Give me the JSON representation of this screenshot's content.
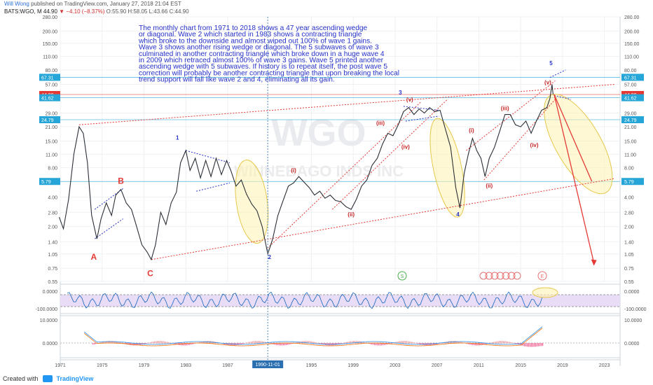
{
  "header": {
    "user": "Will Wong",
    "published": "published on TradingView.com, January 27, 2018 21:04 EST",
    "symbol": "BATS:WGO, M",
    "last": "44.90",
    "change": "▼ −4.10 (−8.37%)",
    "ohlc": "O:55.90 H:58.05 L:43.66 C:44.90"
  },
  "watermark": {
    "ticker": "WGO",
    "name": "WINNEBAGO INDS INC"
  },
  "annotation": [
    "The monthly chart from 1971 to 2018 shows a 47 year ascending wedge",
    "or diagonal. Wave 2 which started in 1983 shows a contracting triangle",
    "which broke to the downside and almost wiped out 100% of wave 1 gains.",
    "Wave 3 shows another rising wedge or diagonal. The 5 subwaves of wave 3",
    "culminated in another contracting triangle which broke down in a huge wave 4",
    "in 2009 which retraced almost 100% of wave 3 gains. Wave 5 printed another",
    "ascending wedge with 5 subwaves. If history is to repeat itself, the post wave 5",
    "correction will probably be another contracting triangle that upon breaking the local",
    "trend support will fall like wave 2 and 4, eliminating all its gain."
  ],
  "wave_labels": {
    "A": "A",
    "B": "B",
    "C": "C",
    "w1": "1",
    "w2": "2",
    "w3": "3",
    "w4": "4",
    "w5": "5",
    "i": "(i)",
    "ii": "(ii)",
    "iii": "(iii)",
    "iv": "(iv)",
    "v": "(v)",
    "i2": "(i)",
    "ii2": "(ii)",
    "iii2": "(iii)",
    "iv2": "(iv)",
    "v2": "(v)"
  },
  "chart_data": {
    "type": "line",
    "price_axis_scale": "log",
    "y_ticks": [
      "280.00",
      "200.00",
      "150.00",
      "110.00",
      "80.00",
      "57.00",
      "41.62",
      "29.00",
      "21.00",
      "15.00",
      "11.00",
      "8.00",
      "5.79",
      "4.00",
      "2.80",
      "2.00",
      "1.40",
      "1.05",
      "0.75",
      "0.55"
    ],
    "y_tick_values": [
      280,
      200,
      150,
      110,
      80,
      57,
      41.62,
      29,
      21,
      15,
      11,
      8,
      5.79,
      4,
      2.8,
      2,
      1.4,
      1.05,
      0.75,
      0.55
    ],
    "x_ticks": [
      "1971",
      "1975",
      "1979",
      "1983",
      "1987",
      "1990-11-01",
      "1995",
      "1999",
      "2003",
      "2007",
      "2011",
      "2015",
      "2019",
      "2023"
    ],
    "x_tick_years": [
      1971,
      1975,
      1979,
      1983,
      1987,
      1990.83,
      1995,
      1999,
      2003,
      2007,
      2011,
      2015,
      2019,
      2023
    ],
    "price_labels": [
      {
        "text": "67.31",
        "value": 67.31,
        "color": "#26a6d8"
      },
      {
        "text": "44.90",
        "value": 44.9,
        "color": "#e53935"
      },
      {
        "text": "41.62",
        "value": 41.62,
        "color": "#26a6d8"
      },
      {
        "text": "24.79",
        "value": 24.79,
        "color": "#26a6d8"
      },
      {
        "text": "5.79",
        "value": 5.79,
        "color": "#26a6d8"
      }
    ],
    "price_series": [
      [
        1970.9,
        2.5
      ],
      [
        1971.3,
        1.9
      ],
      [
        1971.8,
        3.8
      ],
      [
        1972.3,
        11
      ],
      [
        1972.8,
        21
      ],
      [
        1973.2,
        18
      ],
      [
        1973.6,
        9
      ],
      [
        1974.0,
        2.6
      ],
      [
        1974.5,
        1.5
      ],
      [
        1974.9,
        2.4
      ],
      [
        1975.4,
        3.5
      ],
      [
        1975.9,
        2.6
      ],
      [
        1976.3,
        4.2
      ],
      [
        1976.8,
        4.8
      ],
      [
        1977.3,
        3.5
      ],
      [
        1977.8,
        3.0
      ],
      [
        1978.3,
        2.0
      ],
      [
        1978.8,
        1.3
      ],
      [
        1979.3,
        1.1
      ],
      [
        1979.7,
        0.92
      ],
      [
        1980.1,
        1.3
      ],
      [
        1980.6,
        2.8
      ],
      [
        1981.1,
        2.1
      ],
      [
        1981.6,
        3.5
      ],
      [
        1982.1,
        4.5
      ],
      [
        1982.5,
        9
      ],
      [
        1983.0,
        12
      ],
      [
        1983.4,
        7.5
      ],
      [
        1983.9,
        10
      ],
      [
        1984.4,
        6.3
      ],
      [
        1984.9,
        9.5
      ],
      [
        1985.4,
        6.5
      ],
      [
        1985.9,
        10
      ],
      [
        1986.4,
        6.8
      ],
      [
        1986.9,
        9.5
      ],
      [
        1987.3,
        7.5
      ],
      [
        1987.8,
        5.2
      ],
      [
        1988.3,
        6.0
      ],
      [
        1988.8,
        4.3
      ],
      [
        1989.3,
        3.4
      ],
      [
        1989.8,
        2.9
      ],
      [
        1990.3,
        2.0
      ],
      [
        1990.83,
        1.05
      ],
      [
        1991.3,
        1.5
      ],
      [
        1991.8,
        2.6
      ],
      [
        1992.3,
        3.7
      ],
      [
        1992.8,
        5.2
      ],
      [
        1993.3,
        5.6
      ],
      [
        1993.8,
        6.5
      ],
      [
        1994.3,
        5.7
      ],
      [
        1994.8,
        5.0
      ],
      [
        1995.3,
        4.2
      ],
      [
        1995.8,
        4.6
      ],
      [
        1996.3,
        3.9
      ],
      [
        1996.8,
        4.2
      ],
      [
        1997.3,
        3.7
      ],
      [
        1997.8,
        3.6
      ],
      [
        1998.3,
        3.2
      ],
      [
        1998.8,
        3.0
      ],
      [
        1999.3,
        3.8
      ],
      [
        1999.8,
        5.2
      ],
      [
        2000.3,
        6.0
      ],
      [
        2000.8,
        8.5
      ],
      [
        2001.3,
        10
      ],
      [
        2001.8,
        14
      ],
      [
        2002.3,
        18
      ],
      [
        2002.8,
        17
      ],
      [
        2003.3,
        22
      ],
      [
        2003.8,
        30
      ],
      [
        2004.3,
        33
      ],
      [
        2004.8,
        28
      ],
      [
        2005.3,
        32
      ],
      [
        2005.8,
        29
      ],
      [
        2006.3,
        33
      ],
      [
        2006.8,
        30
      ],
      [
        2007.3,
        31
      ],
      [
        2007.8,
        20
      ],
      [
        2008.3,
        13
      ],
      [
        2008.8,
        5
      ],
      [
        2009.2,
        3.1
      ],
      [
        2009.6,
        7
      ],
      [
        2010.0,
        11
      ],
      [
        2010.4,
        16
      ],
      [
        2010.8,
        12
      ],
      [
        2011.2,
        10
      ],
      [
        2011.6,
        6.5
      ],
      [
        2012.0,
        10
      ],
      [
        2012.5,
        13
      ],
      [
        2013.0,
        19
      ],
      [
        2013.5,
        28
      ],
      [
        2014.0,
        28
      ],
      [
        2014.5,
        22
      ],
      [
        2015.0,
        21
      ],
      [
        2015.5,
        24
      ],
      [
        2016.0,
        18
      ],
      [
        2016.5,
        24
      ],
      [
        2017.0,
        31
      ],
      [
        2017.5,
        33
      ],
      [
        2017.8,
        41
      ],
      [
        2018.0,
        57
      ],
      [
        2018.1,
        44.9
      ]
    ],
    "projection": {
      "from": [
        2018.2,
        44.9
      ],
      "to": [
        2022.0,
        0.85
      ]
    },
    "oscillator_1": {
      "ticks": [
        "0.0000",
        "-100.0000"
      ],
      "tick_values": [
        0,
        -100
      ]
    },
    "oscillator_2": {
      "ticks": [
        "10.0000",
        "0.0000"
      ],
      "tick_values": [
        10,
        0
      ]
    }
  }
}
